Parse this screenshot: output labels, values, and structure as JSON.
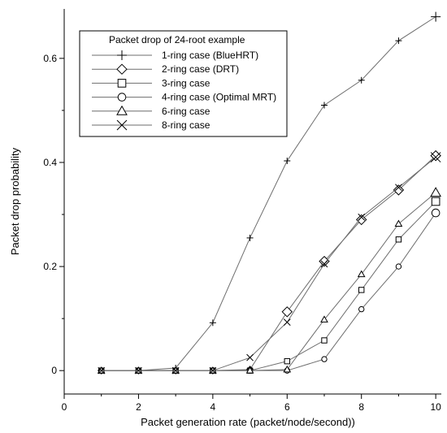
{
  "chart_data": {
    "type": "line",
    "xlabel": "Packet generation rate (packet/node/second))",
    "ylabel": "Packet drop probability",
    "xlim": [
      0,
      10.15
    ],
    "ylim": [
      -0.045,
      0.695
    ],
    "x_ticks": [
      0,
      2,
      4,
      6,
      8,
      10
    ],
    "y_ticks": [
      0,
      0.2,
      0.4,
      0.6
    ],
    "x_tick_labels": [
      "0",
      "2",
      "4",
      "6",
      "8",
      "10"
    ],
    "y_tick_labels": [
      "0",
      "0.2",
      "0.4",
      "0.6"
    ],
    "grid": false,
    "legend": {
      "title": "Packet drop of 24-root example",
      "placement": "top-left"
    },
    "x": [
      1,
      2,
      3,
      4,
      5,
      6,
      7,
      8,
      9,
      10
    ],
    "series": [
      {
        "name": "1-ring case (BlueHRT)",
        "marker": "plus",
        "values": [
          0,
          0,
          0.005,
          0.092,
          0.255,
          0.403,
          0.51,
          0.558,
          0.634,
          0.68
        ]
      },
      {
        "name": "2-ring case (DRT)",
        "marker": "diamond",
        "values": [
          0,
          0,
          0,
          0,
          0.002,
          0.113,
          0.21,
          0.29,
          0.347,
          0.413
        ]
      },
      {
        "name": "3-ring case",
        "marker": "square",
        "values": [
          0,
          0,
          0,
          0,
          0,
          0.018,
          0.058,
          0.155,
          0.252,
          0.325
        ]
      },
      {
        "name": "4-ring case (Optimal MRT)",
        "marker": "circle",
        "values": [
          0,
          0,
          0,
          0,
          0,
          0,
          0.022,
          0.118,
          0.2,
          0.303
        ]
      },
      {
        "name": "6-ring case",
        "marker": "triangle",
        "values": [
          0,
          0,
          0,
          0,
          0,
          0.002,
          0.098,
          0.185,
          0.282,
          0.342
        ]
      },
      {
        "name": "8-ring case",
        "marker": "x",
        "values": [
          0,
          0,
          0,
          0,
          0.025,
          0.093,
          0.205,
          0.295,
          0.352,
          0.41
        ]
      }
    ],
    "colors": {
      "line": "#6e6e6e",
      "axis": "#000000",
      "legend_border": "#000000"
    }
  }
}
